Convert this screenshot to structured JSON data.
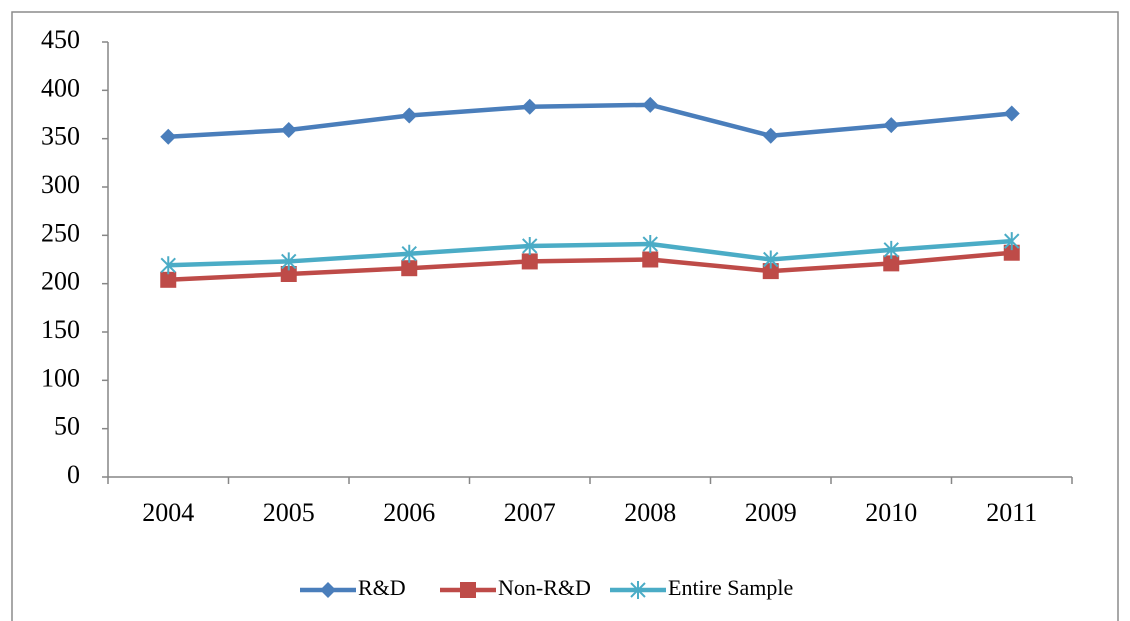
{
  "chart_data": {
    "type": "line",
    "categories": [
      "2004",
      "2005",
      "2006",
      "2007",
      "2008",
      "2009",
      "2010",
      "2011"
    ],
    "series": [
      {
        "name": "R&D",
        "color": "#4a7ebb",
        "marker": "diamond",
        "values": [
          352,
          359,
          374,
          383,
          385,
          353,
          364,
          376
        ]
      },
      {
        "name": "Non-R&D",
        "color": "#be4b48",
        "marker": "square",
        "values": [
          204,
          210,
          216,
          223,
          225,
          213,
          221,
          232
        ]
      },
      {
        "name": "Entire Sample",
        "color": "#4bacc6",
        "marker": "asterisk",
        "values": [
          219,
          223,
          231,
          239,
          241,
          225,
          235,
          244
        ]
      }
    ],
    "ylim": [
      0,
      450
    ],
    "yticks": [
      0,
      50,
      100,
      150,
      200,
      250,
      300,
      350,
      400,
      450
    ],
    "grid": false,
    "legend": "bottom"
  }
}
